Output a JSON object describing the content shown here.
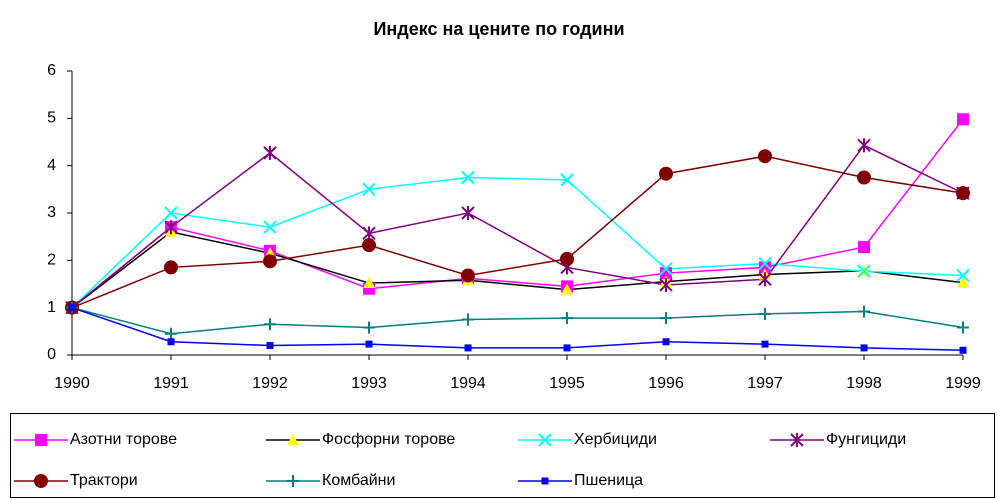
{
  "chart_data": {
    "type": "line",
    "title": "Индекс на цените по години",
    "categories": [
      "1990",
      "1991",
      "1992",
      "1993",
      "1994",
      "1995",
      "1996",
      "1997",
      "1998",
      "1999"
    ],
    "ylim": [
      0,
      6
    ],
    "yticks": [
      0,
      1,
      2,
      3,
      4,
      5,
      6
    ],
    "series": [
      {
        "name": "Азотни торове",
        "color": "#ff00ff",
        "marker": "square",
        "marker_color": "#ff00ff",
        "values": [
          1,
          2.7,
          2.2,
          1.4,
          1.62,
          1.45,
          1.73,
          1.85,
          2.28,
          4.98
        ]
      },
      {
        "name": "Фосфорни торове",
        "color": "#000000",
        "marker": "triangle",
        "marker_color": "#ffff00",
        "values": [
          1,
          2.6,
          2.15,
          1.52,
          1.58,
          1.38,
          1.55,
          1.7,
          1.78,
          1.53
        ]
      },
      {
        "name": "Хербициди",
        "color": "#00ffff",
        "marker": "x",
        "marker_color": "#00ffff",
        "values": [
          1,
          3.0,
          2.7,
          3.5,
          3.75,
          3.7,
          1.82,
          1.93,
          1.77,
          1.68
        ]
      },
      {
        "name": "Фунгициди",
        "color": "#800080",
        "marker": "star",
        "marker_color": "#800080",
        "values": [
          1,
          2.7,
          4.27,
          2.57,
          3.0,
          1.85,
          1.48,
          1.6,
          4.43,
          3.42
        ]
      },
      {
        "name": "Трактори",
        "color": "#800000",
        "marker": "circle",
        "marker_color": "#800000",
        "values": [
          1,
          1.85,
          1.98,
          2.32,
          1.68,
          2.03,
          3.83,
          4.2,
          3.75,
          3.42
        ]
      },
      {
        "name": "Комбайни",
        "color": "#008080",
        "marker": "plus",
        "marker_color": "#008080",
        "values": [
          1,
          0.45,
          0.65,
          0.58,
          0.75,
          0.78,
          0.78,
          0.87,
          0.92,
          0.58
        ]
      },
      {
        "name": "Пшеница",
        "color": "#0000ff",
        "marker": "smallsquare",
        "marker_color": "#0000ff",
        "values": [
          1,
          0.28,
          0.2,
          0.23,
          0.15,
          0.15,
          0.28,
          0.23,
          0.15,
          0.1
        ]
      }
    ]
  }
}
